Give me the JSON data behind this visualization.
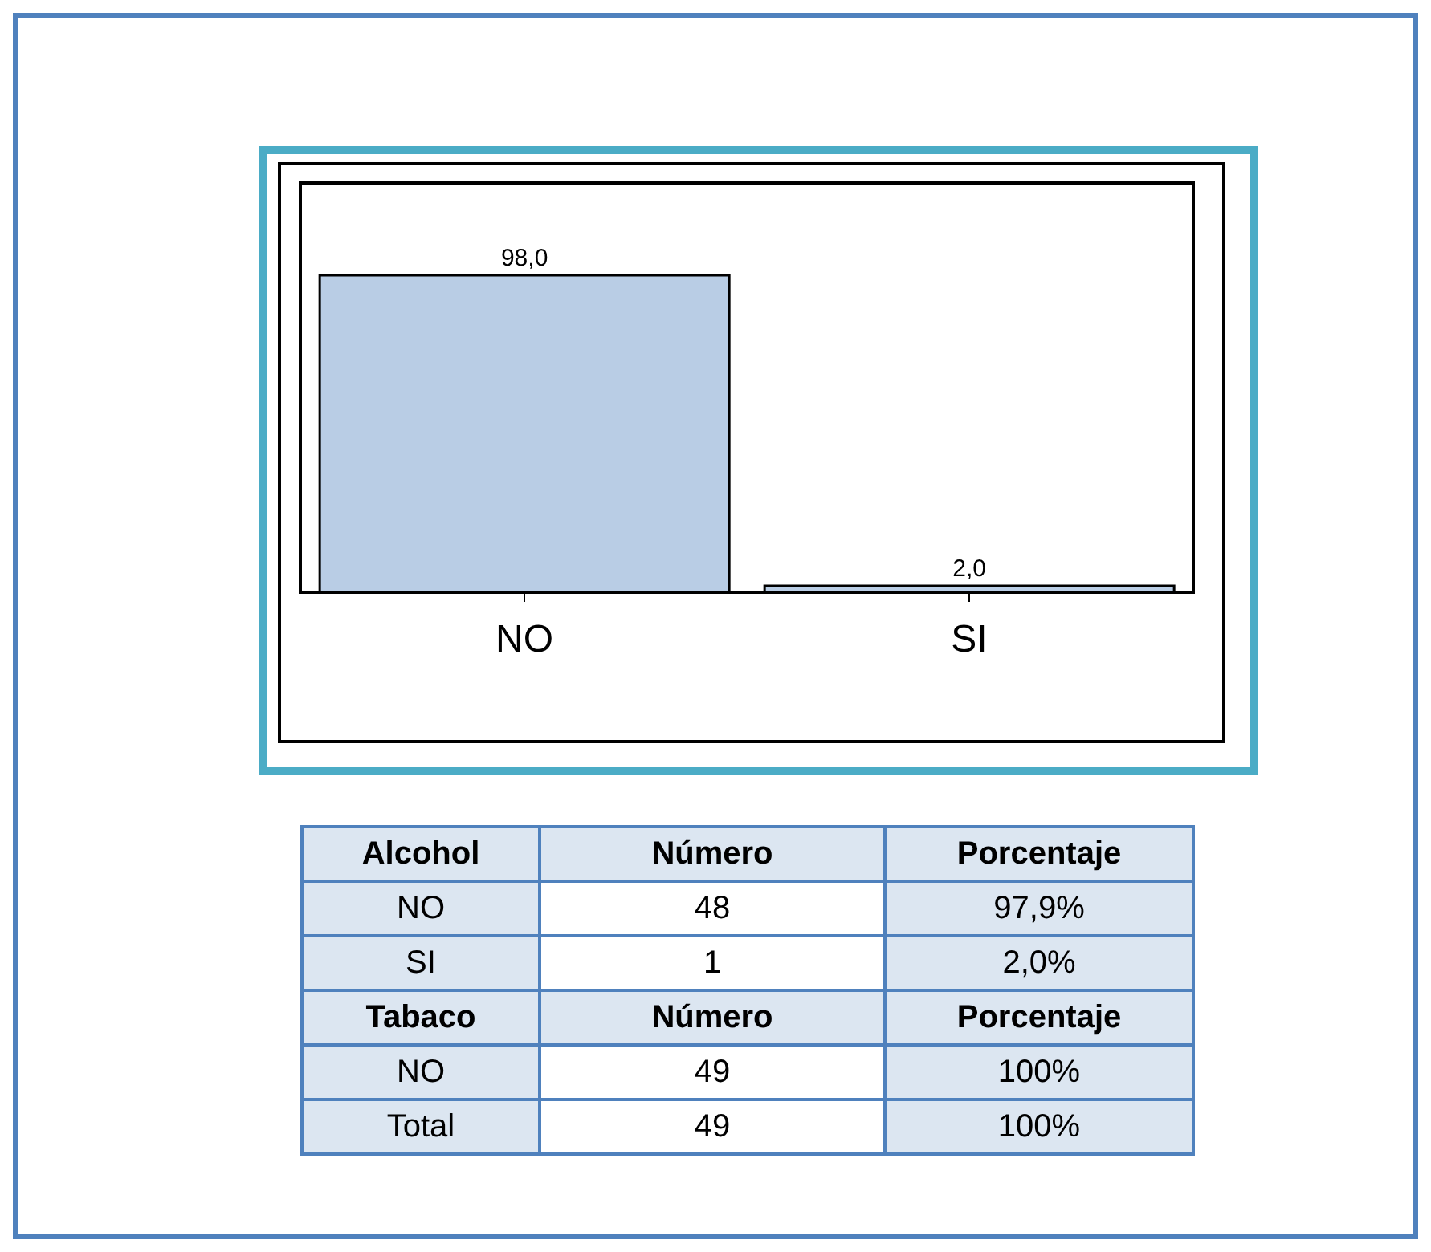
{
  "chart_data": [
    {
      "type": "bar",
      "categories": [
        "NO",
        "SI"
      ],
      "values": [
        98.0,
        2.0
      ],
      "colors": [
        "#b9cde5",
        "#b9cde5"
      ],
      "value_labels": [
        "98,0",
        "2,0"
      ],
      "ylim": [
        0,
        127
      ],
      "tick_labels": "x"
    },
    {
      "type": "other",
      "annotations": [
        "Alcohol",
        "Número",
        "Porcentaje",
        "NO",
        "48",
        "97,9%",
        "SI",
        "1",
        "2,0%",
        "Tabaco",
        "Número",
        "Porcentaje",
        "NO",
        "49",
        "100%",
        "Total",
        "49",
        "100%"
      ]
    }
  ]
}
